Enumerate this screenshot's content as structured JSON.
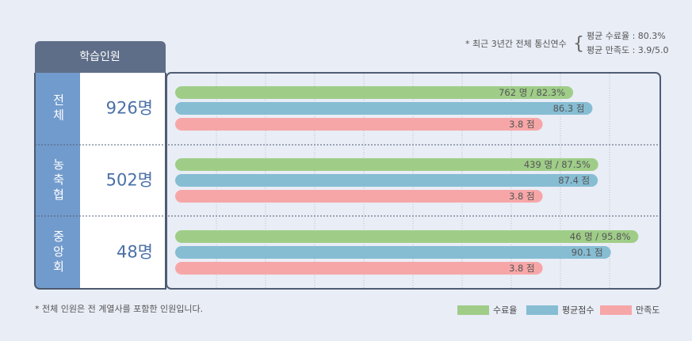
{
  "chart_data": {
    "type": "bar",
    "header": "학습인원",
    "note": "* 최근 3년간 전체 통신연수",
    "summary": [
      "평균 수료율 : 80.3%",
      "평균 만족도 : 3.9/5.0"
    ],
    "footnote": "* 전체 인원은 전 계열사를 포함한 인원입니다.",
    "categories": [
      "전체",
      "농축협",
      "중앙회"
    ],
    "totals": [
      926,
      502,
      48
    ],
    "total_labels": [
      "926명",
      "502명",
      "48명"
    ],
    "grid": true,
    "series": [
      {
        "name": "수료율",
        "color": "#9fcd88",
        "xlim": [
          0,
          100
        ],
        "values": [
          82.3,
          87.5,
          95.8
        ],
        "value_labels": [
          "762 명 / 82.3%",
          "439 명 / 87.5%",
          "46 명 / 95.8%"
        ]
      },
      {
        "name": "평균점수",
        "color": "#86bdd3",
        "xlim": [
          0,
          100
        ],
        "values": [
          86.3,
          87.4,
          90.1
        ],
        "value_labels": [
          "86.3 점",
          "87.4 점",
          "90.1 점"
        ]
      },
      {
        "name": "만족도",
        "color": "#f7a6a7",
        "xlim": [
          0,
          5
        ],
        "values": [
          3.8,
          3.8,
          3.8
        ],
        "value_labels": [
          "3.8 점",
          "3.8 점",
          "3.8 점"
        ]
      }
    ]
  }
}
